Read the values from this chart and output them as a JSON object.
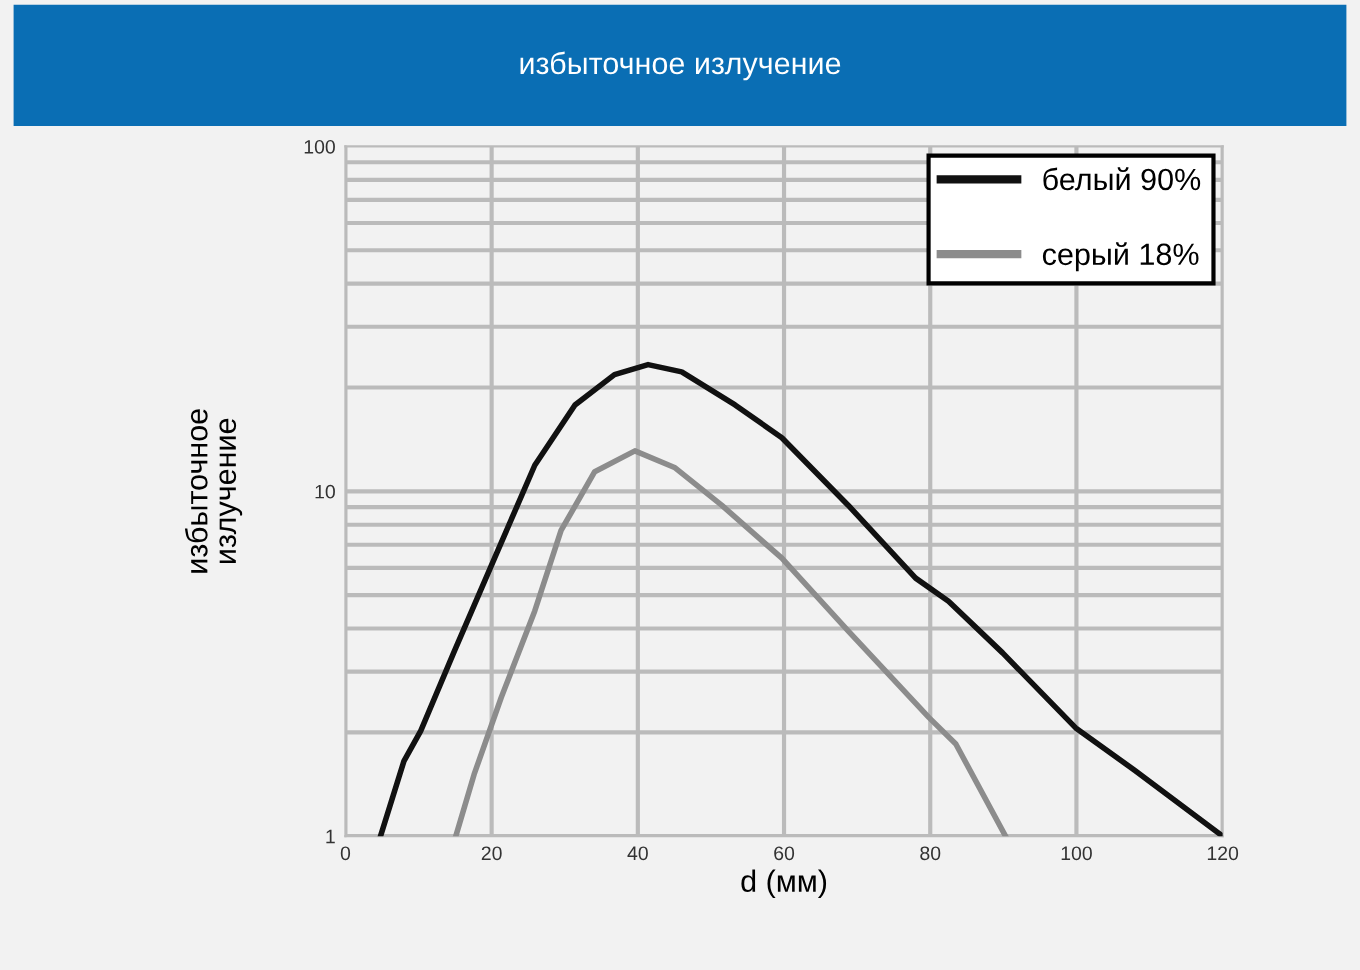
{
  "chart_data": {
    "type": "line",
    "title": "избыточное излучение",
    "xlabel": "d (мм)",
    "ylabel": "избыточное излучение",
    "xlim": [
      0,
      120
    ],
    "xticks": [
      0,
      20,
      40,
      60,
      80,
      100,
      120
    ],
    "ylim": [
      1,
      100
    ],
    "yticks": [
      1,
      10,
      100
    ],
    "log": true,
    "grid": true,
    "legend": "top right",
    "series": [
      {
        "name": "белый 90%",
        "color": "#111111",
        "x": [
          4.8,
          8.0,
          10.3,
          14.9,
          20.4,
          25.9,
          31.4,
          36.8,
          41.4,
          46,
          53.3,
          59.7,
          68.8,
          78,
          82.5,
          89.9,
          99.9,
          108,
          120
        ],
        "values": [
          1,
          1.65,
          2.02,
          3.44,
          6.4,
          11.9,
          17.8,
          21.8,
          23.3,
          22.2,
          17.8,
          14.3,
          9.1,
          5.6,
          4.8,
          3.4,
          2.06,
          1.55,
          1
        ]
      },
      {
        "name": "серый 18%",
        "color": "#8c8c8c",
        "x": [
          15.1,
          17.6,
          21.3,
          25.9,
          29.5,
          34.1,
          39.6,
          45.1,
          51.5,
          59.7,
          68.8,
          79.8,
          83.5,
          90.3
        ],
        "values": [
          1,
          1.51,
          2.52,
          4.5,
          7.7,
          11.4,
          13.1,
          11.7,
          9.1,
          6.4,
          3.93,
          2.21,
          1.85,
          1
        ]
      }
    ]
  }
}
